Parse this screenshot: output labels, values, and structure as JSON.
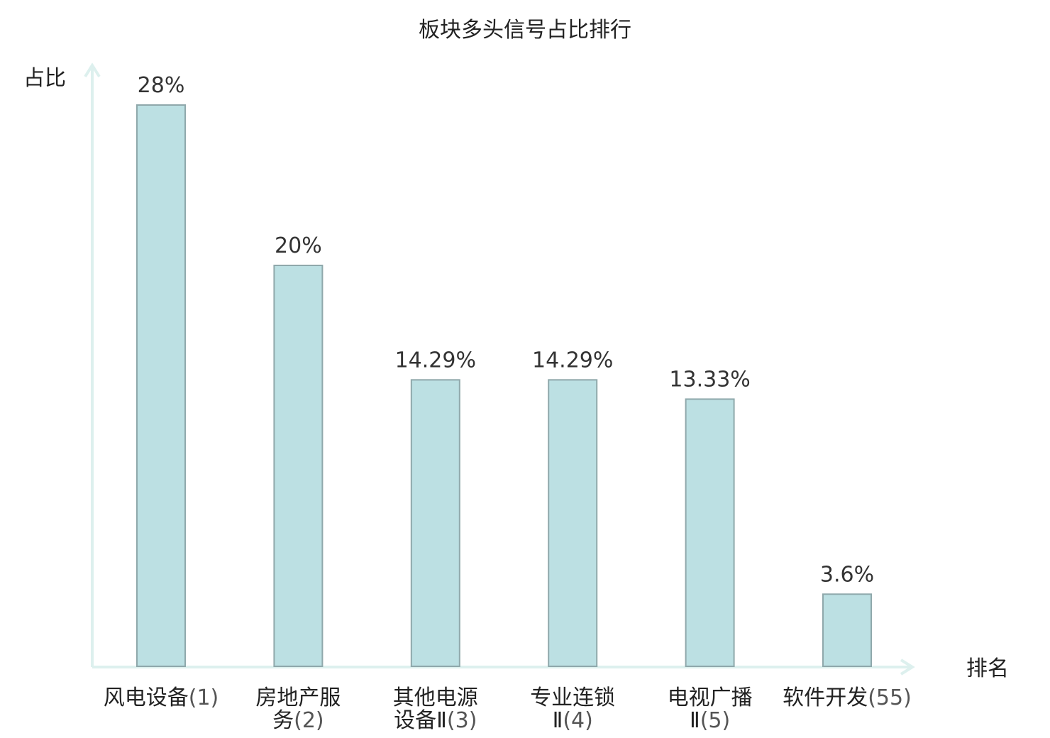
{
  "chart_data": {
    "type": "bar",
    "title": "板块多头信号占比排行",
    "ylabel": "占比",
    "xlabel": "排名",
    "ylim": [
      0,
      30
    ],
    "grid": false,
    "legend": "none",
    "categories": [
      {
        "name_lines": [
          "风电设备"
        ],
        "rank_line": 0,
        "rank": "(1)",
        "highlight": false
      },
      {
        "name_lines": [
          "房地产服",
          "务"
        ],
        "rank_line": 1,
        "rank": "(2)",
        "highlight": false
      },
      {
        "name_lines": [
          "其他电源",
          "设备Ⅱ"
        ],
        "rank_line": 1,
        "rank": "(3)",
        "highlight": false
      },
      {
        "name_lines": [
          "专业连锁",
          "Ⅱ"
        ],
        "rank_line": 1,
        "rank": "(4)",
        "highlight": false
      },
      {
        "name_lines": [
          "电视广播",
          "Ⅱ"
        ],
        "rank_line": 1,
        "rank": "(5)",
        "highlight": false
      },
      {
        "name_lines": [
          "软件开发"
        ],
        "rank_line": 0,
        "rank": "(55)",
        "highlight": true
      }
    ],
    "values": [
      28,
      20,
      14.29,
      14.29,
      13.33,
      3.6
    ],
    "data_labels": [
      "28%",
      "20%",
      "14.29%",
      "14.29%",
      "13.33%",
      "3.6%"
    ]
  },
  "colors": {
    "bar_fill": "#bce0e3",
    "bar_stroke": "#8fa8ab",
    "axis": "#ddf0ee",
    "highlight_text": "#e02020"
  }
}
